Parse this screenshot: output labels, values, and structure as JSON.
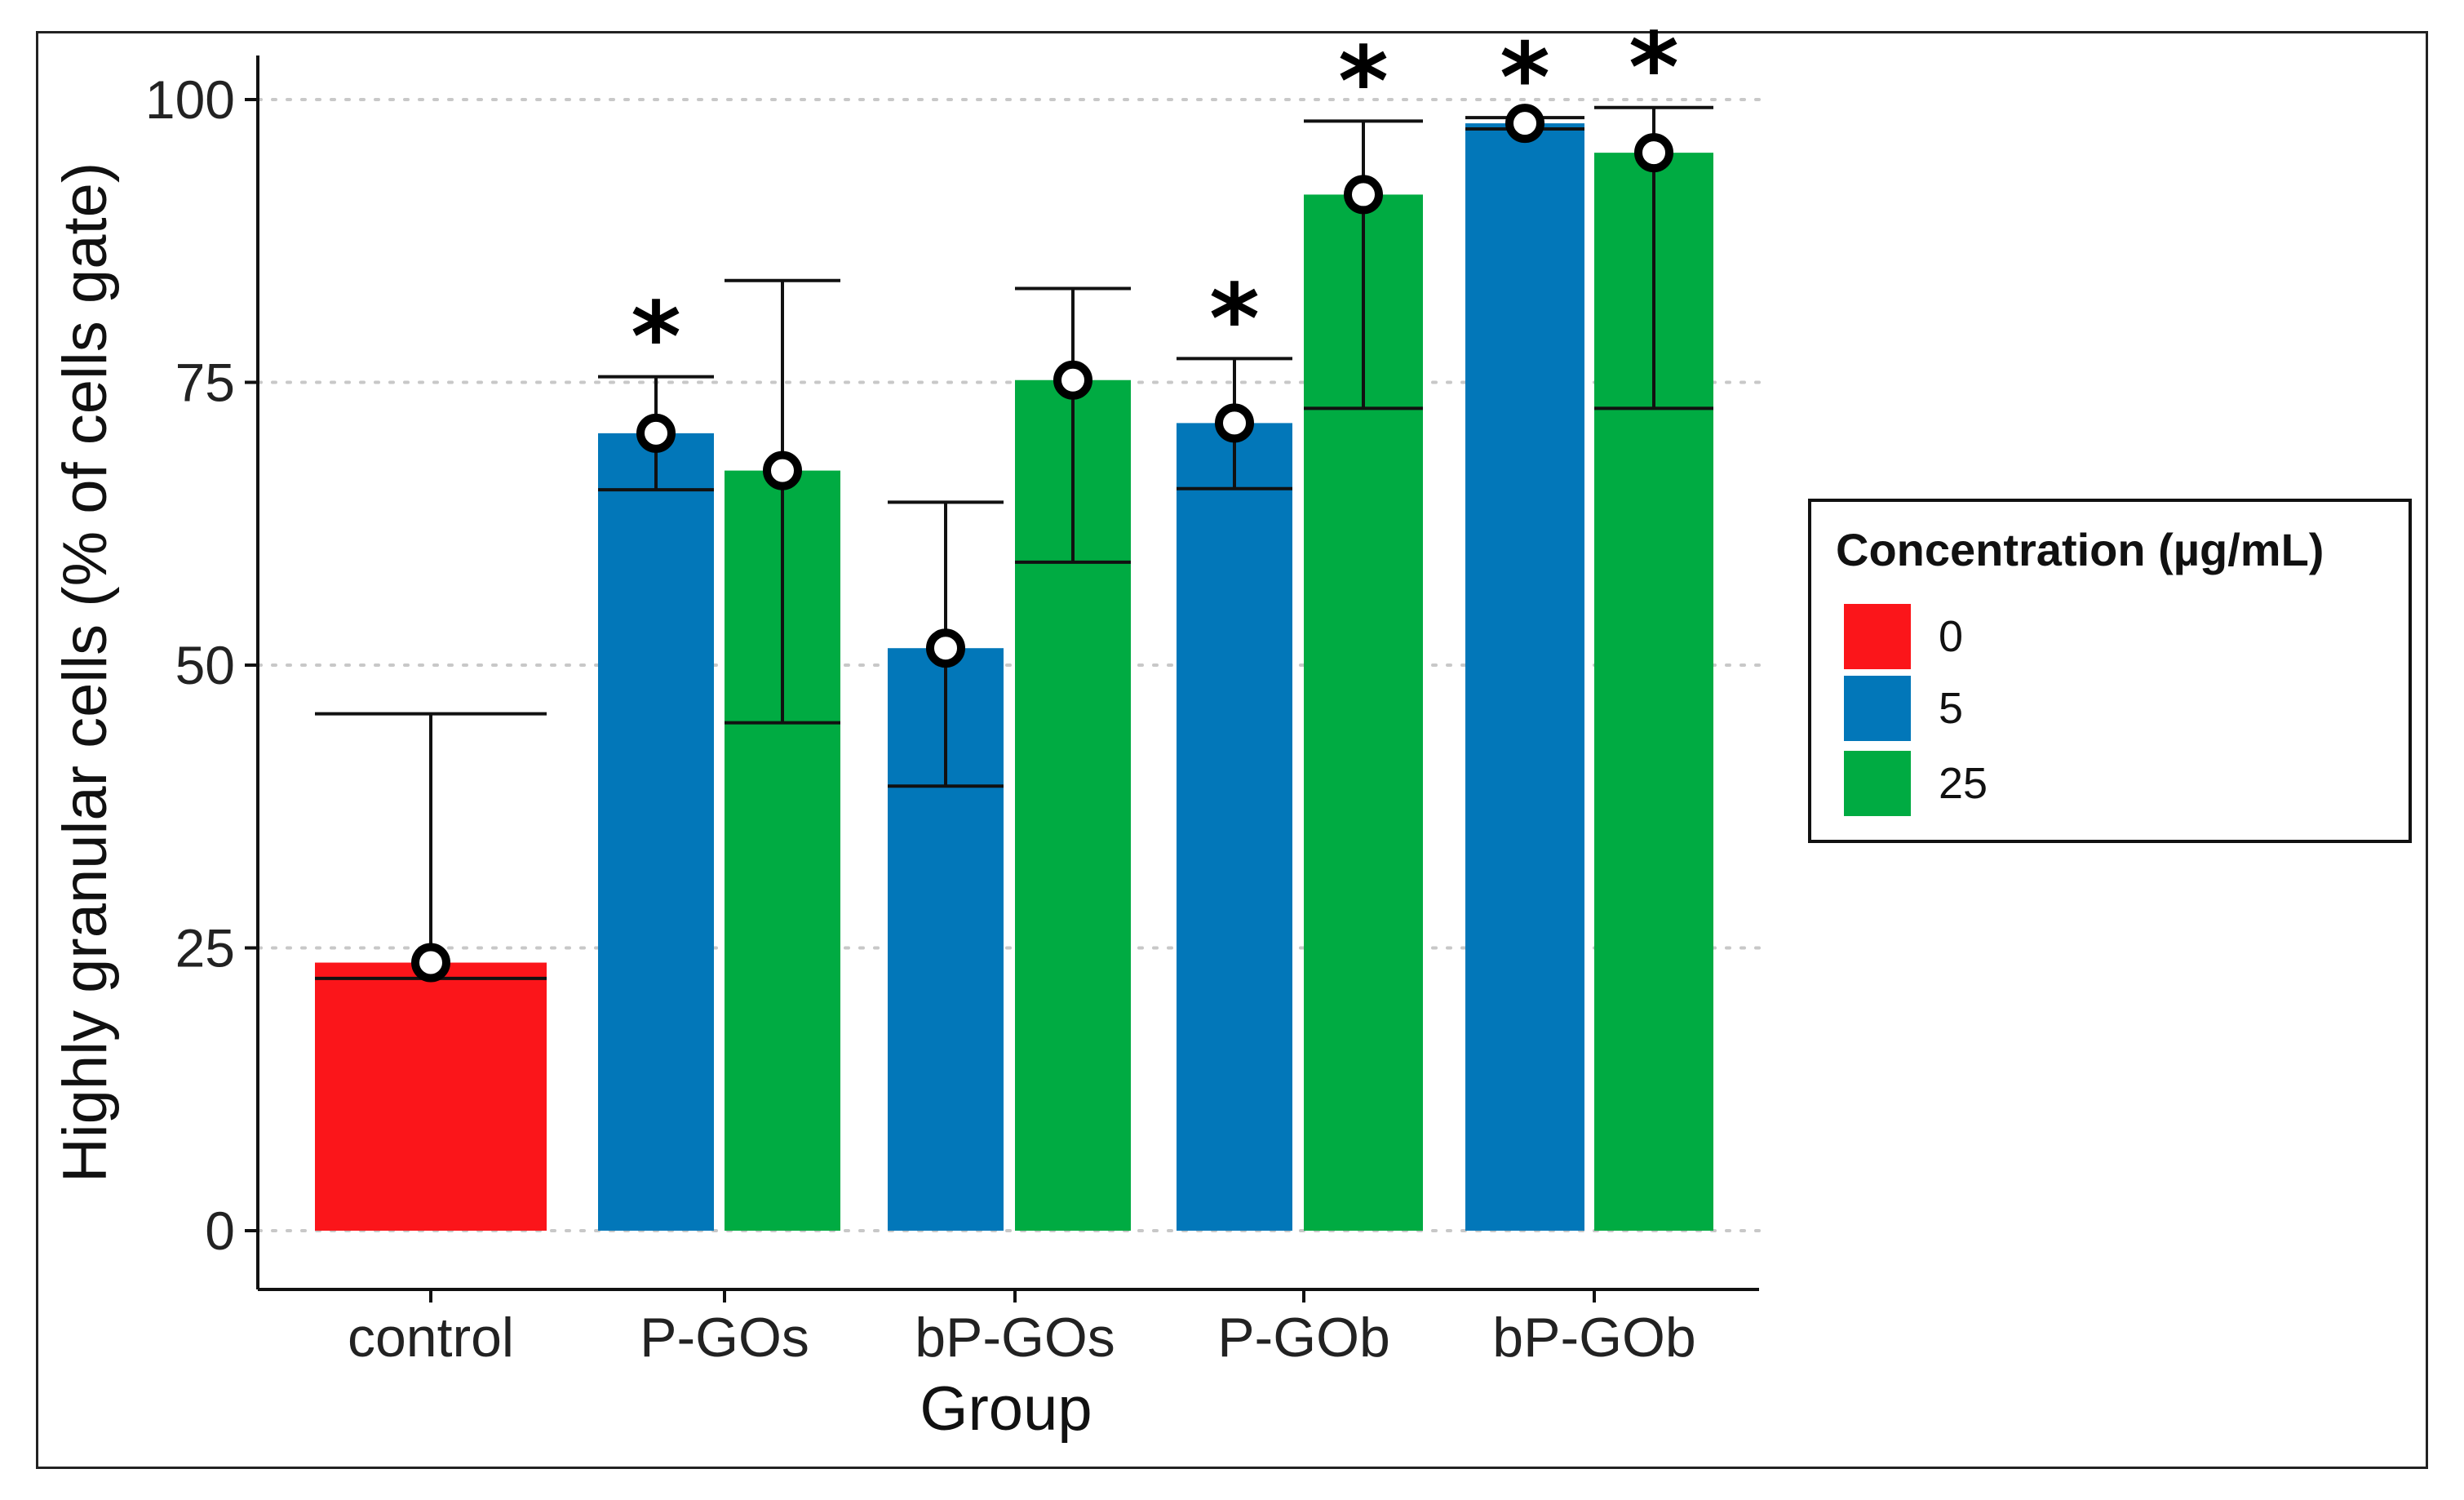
{
  "chart_data": {
    "type": "bar",
    "title": "",
    "xlabel": "Group",
    "ylabel": "Highly granular cells (% of cells gate)",
    "ylim": [
      0,
      100
    ],
    "y_ticks": [
      0,
      25,
      50,
      75,
      100
    ],
    "y_tick_labels": [
      "0",
      "25",
      "50",
      "75",
      "100"
    ],
    "grid": "horizontal dotted",
    "categories": [
      "control",
      "P-GOs",
      "bP-GOs",
      "P-GOb",
      "bP-GOb"
    ],
    "legend": {
      "title": "Concentration (µg/mL)",
      "placement": "right",
      "entries": [
        {
          "label": "0",
          "color": "#fb151a"
        },
        {
          "label": "5",
          "color": "#0277b9"
        },
        {
          "label": "25",
          "color": "#00ab42"
        }
      ]
    },
    "bars": [
      {
        "group": "control",
        "concentration": "0",
        "value": 23.7,
        "err_low": 22.3,
        "err_high": 45.7,
        "significant": false
      },
      {
        "group": "P-GOs",
        "concentration": "5",
        "value": 70.5,
        "err_low": 65.5,
        "err_high": 75.5,
        "significant": true
      },
      {
        "group": "P-GOs",
        "concentration": "25",
        "value": 67.2,
        "err_low": 44.9,
        "err_high": 84.0,
        "significant": false
      },
      {
        "group": "bP-GOs",
        "concentration": "5",
        "value": 51.5,
        "err_low": 39.3,
        "err_high": 64.4,
        "significant": false
      },
      {
        "group": "bP-GOs",
        "concentration": "25",
        "value": 75.2,
        "err_low": 59.1,
        "err_high": 83.3,
        "significant": false
      },
      {
        "group": "P-GOb",
        "concentration": "5",
        "value": 71.4,
        "err_low": 65.6,
        "err_high": 77.1,
        "significant": true
      },
      {
        "group": "P-GOb",
        "concentration": "25",
        "value": 91.6,
        "err_low": 72.7,
        "err_high": 98.1,
        "significant": true
      },
      {
        "group": "bP-GOb",
        "concentration": "5",
        "value": 97.9,
        "err_low": 97.4,
        "err_high": 98.4,
        "significant": true
      },
      {
        "group": "bP-GOb",
        "concentration": "25",
        "value": 95.3,
        "err_low": 72.7,
        "err_high": 99.3,
        "significant": true
      }
    ],
    "significance_marker": "*"
  }
}
